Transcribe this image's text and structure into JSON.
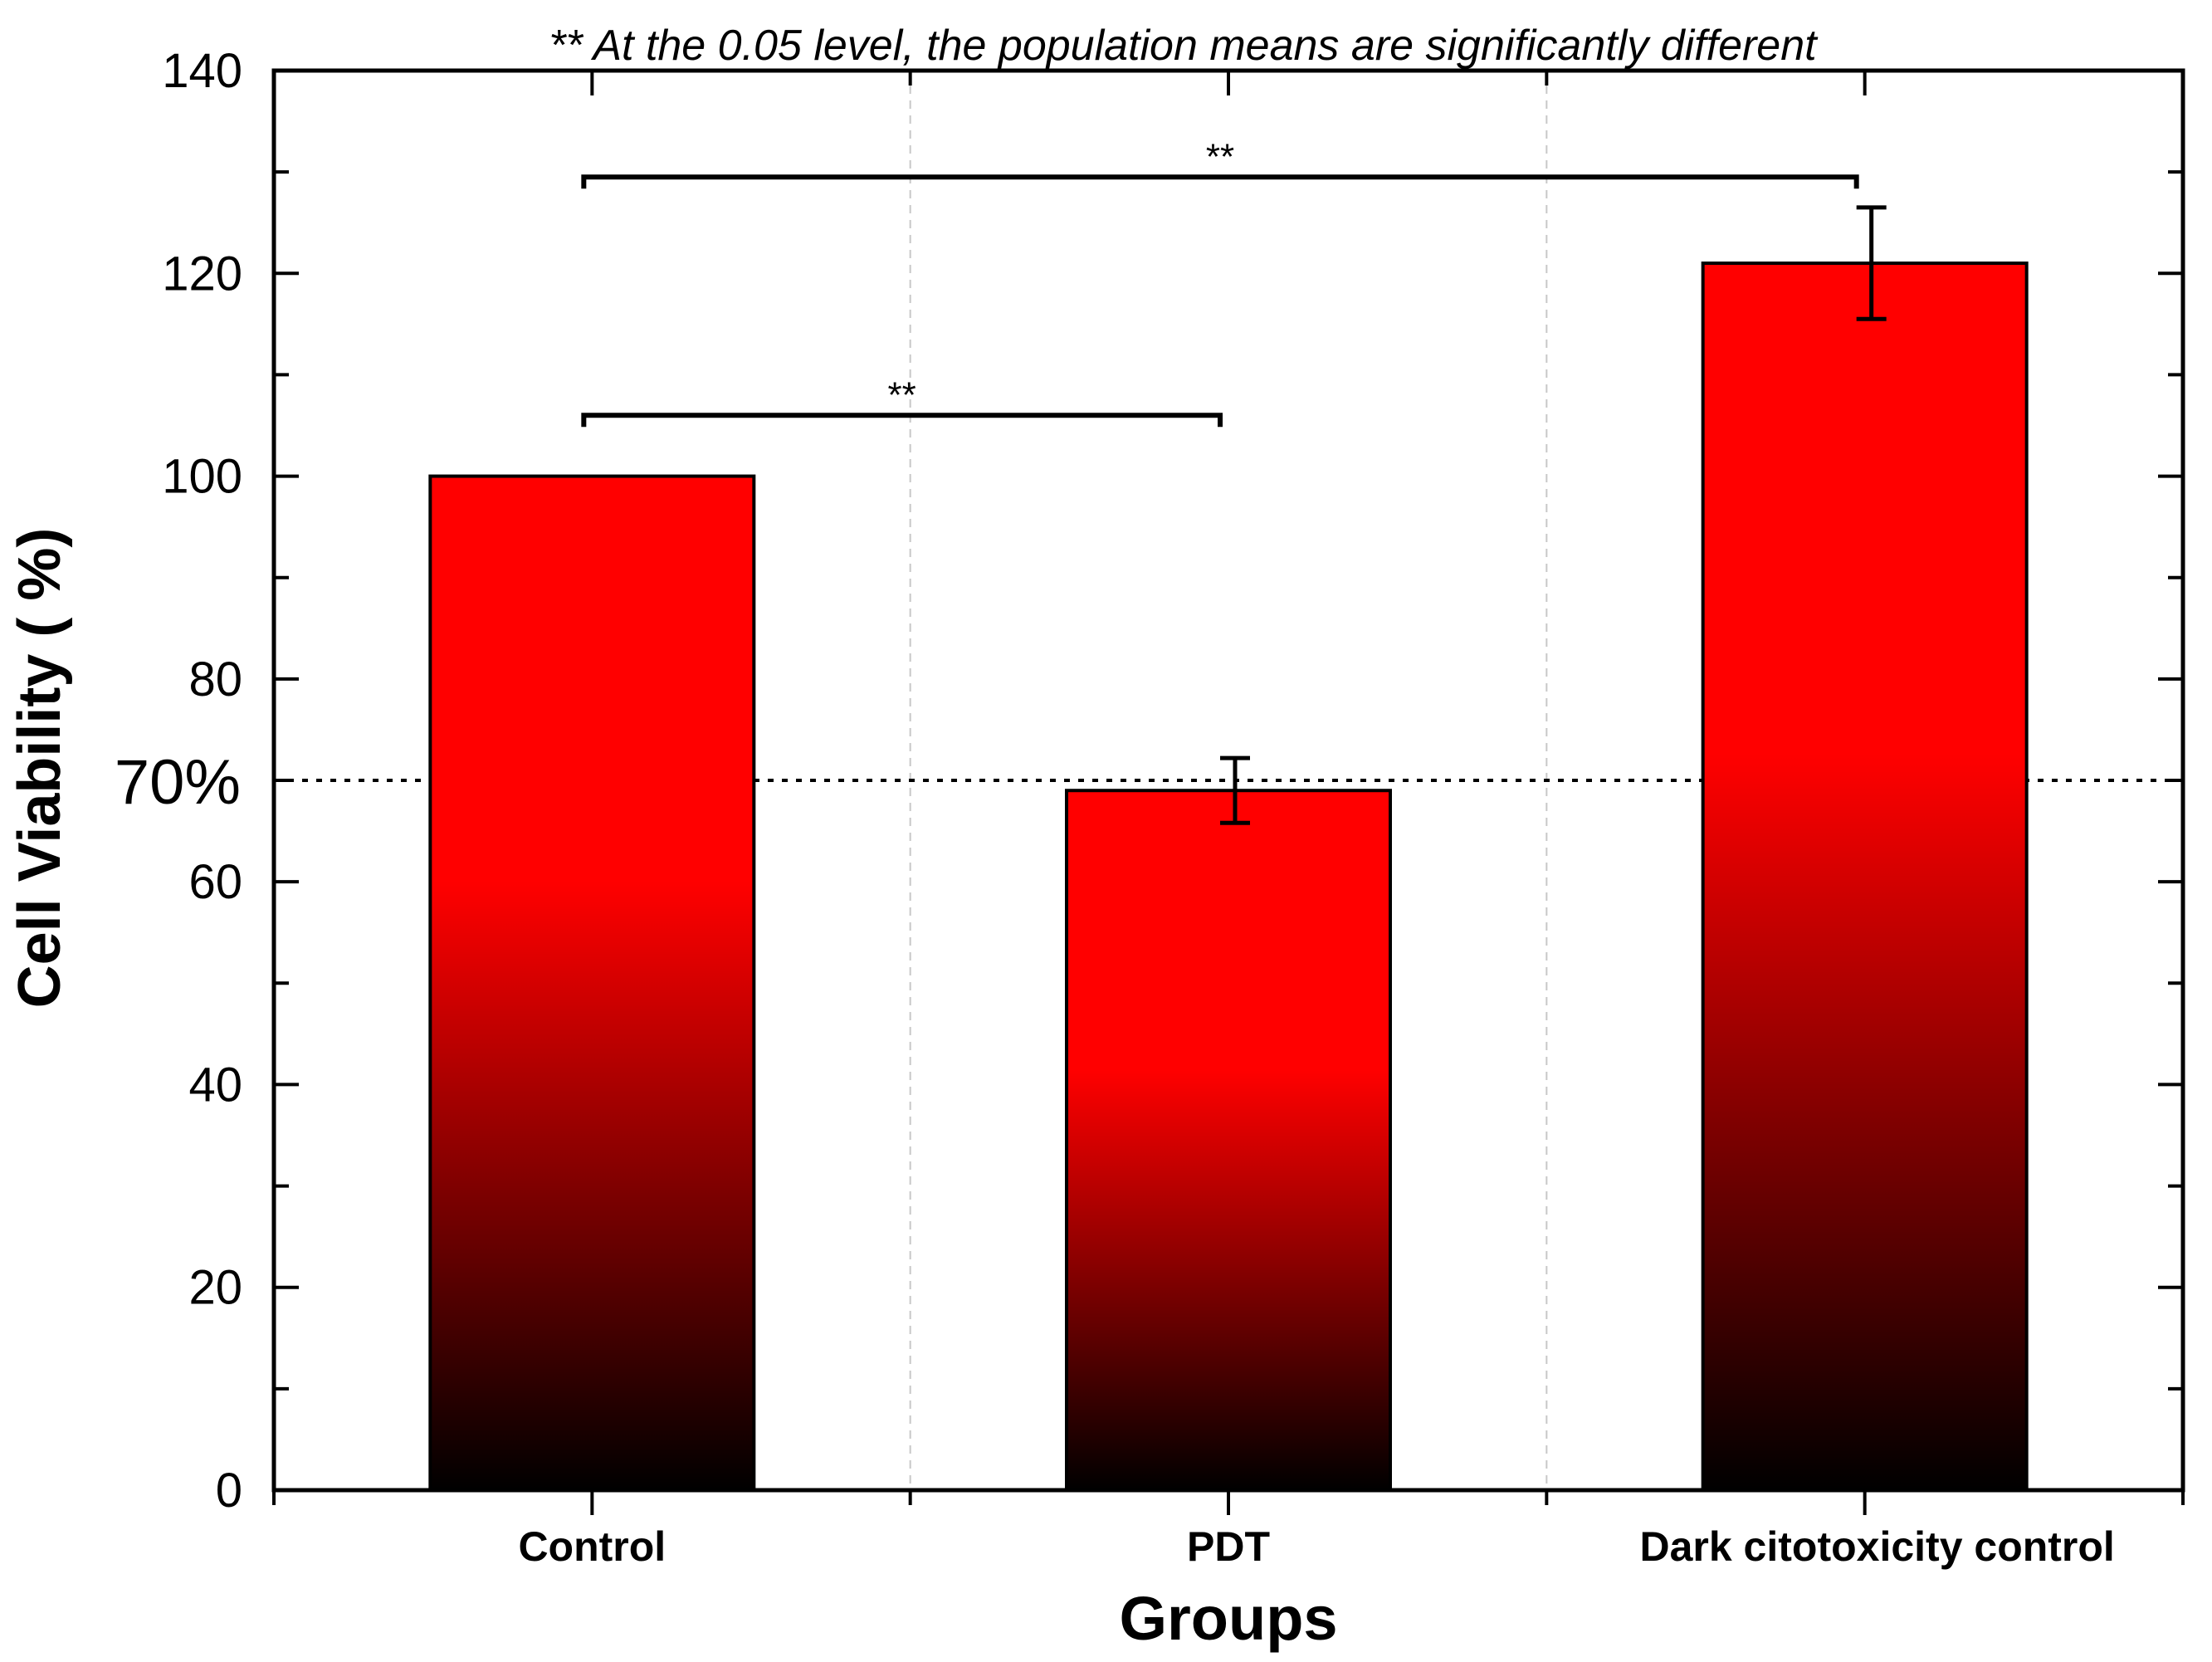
{
  "chart_data": {
    "type": "bar",
    "title": "",
    "note": "** At the 0.05 level, the population means are significantly different",
    "xlabel": "Groups",
    "ylabel": "Cell Viability ( %)",
    "categories": [
      "Control",
      "PDT",
      "Dark citotoxicity control"
    ],
    "values": [
      100,
      69,
      121
    ],
    "errors": [
      0,
      3.2,
      5.5
    ],
    "ylim": [
      0,
      140
    ],
    "yticks": [
      0,
      20,
      40,
      60,
      80,
      100,
      120,
      140
    ],
    "reference_line": {
      "value": 70,
      "label": "70%"
    },
    "significance": [
      {
        "from": "Control",
        "to": "Dark citotoxicity control",
        "level": 129.5,
        "label": "**"
      },
      {
        "from": "Control",
        "to": "PDT",
        "level": 106,
        "label": "**"
      }
    ],
    "colors": {
      "bar_top": "#ff0000",
      "bar_bottom": "#000000",
      "axis": "#000000",
      "grid": "#c8c8c8"
    }
  }
}
